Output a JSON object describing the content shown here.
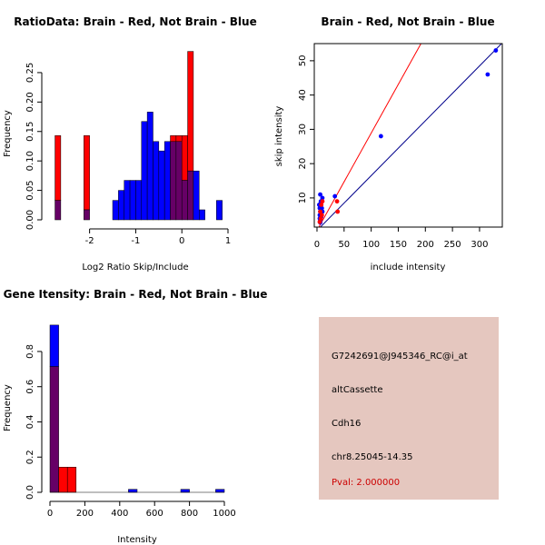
{
  "colors": {
    "red": "#ff0000",
    "blue": "#0000ff",
    "overlap": "#660066",
    "diag_blue": "#00008b",
    "box_bg": "#e5c7bf",
    "pval": "#cc0000"
  },
  "chart_data": [
    {
      "type": "bar",
      "id": "ratio_hist",
      "title": "RatioData: Brain - Red, Not Brain - Blue",
      "xlabel": "Log2 Ratio Skip/Include",
      "ylabel": "Frequency",
      "xlim": [
        -2.8,
        1.0
      ],
      "ylim": [
        0,
        0.29
      ],
      "xticks": [
        -2,
        -1,
        0,
        1
      ],
      "yticks": [
        0.0,
        0.05,
        0.1,
        0.15,
        0.2,
        0.25
      ],
      "ytick_labels": [
        "0.00",
        "0.05",
        "0.10",
        "0.15",
        "0.20",
        "0.25"
      ],
      "bin_width": 0.125,
      "series": [
        {
          "name": "Brain",
          "color": "red",
          "bins": [
            {
              "x": -2.75,
              "value": 0.143
            },
            {
              "x": -2.125,
              "value": 0.143
            },
            {
              "x": -0.25,
              "value": 0.143
            },
            {
              "x": -0.125,
              "value": 0.143
            },
            {
              "x": 0.0,
              "value": 0.143
            },
            {
              "x": 0.125,
              "value": 0.286
            }
          ]
        },
        {
          "name": "Not Brain",
          "color": "blue",
          "bins": [
            {
              "x": -2.75,
              "value": 0.033
            },
            {
              "x": -2.125,
              "value": 0.017
            },
            {
              "x": -1.5,
              "value": 0.033
            },
            {
              "x": -1.375,
              "value": 0.05
            },
            {
              "x": -1.25,
              "value": 0.067
            },
            {
              "x": -1.125,
              "value": 0.067
            },
            {
              "x": -1.0,
              "value": 0.067
            },
            {
              "x": -0.875,
              "value": 0.167
            },
            {
              "x": -0.75,
              "value": 0.183
            },
            {
              "x": -0.625,
              "value": 0.133
            },
            {
              "x": -0.5,
              "value": 0.117
            },
            {
              "x": -0.375,
              "value": 0.133
            },
            {
              "x": -0.25,
              "value": 0.133
            },
            {
              "x": -0.125,
              "value": 0.133
            },
            {
              "x": 0.0,
              "value": 0.067
            },
            {
              "x": 0.125,
              "value": 0.083
            },
            {
              "x": 0.25,
              "value": 0.083
            },
            {
              "x": 0.375,
              "value": 0.017
            },
            {
              "x": 0.75,
              "value": 0.033
            }
          ]
        }
      ]
    },
    {
      "type": "scatter",
      "id": "intensity_scatter",
      "title": "Brain - Red, Not Brain - Blue",
      "xlabel": "include intensity",
      "ylabel": "skip intensity",
      "xlim": [
        -5,
        342
      ],
      "ylim": [
        1.5,
        55
      ],
      "xticks": [
        0,
        50,
        100,
        150,
        200,
        250,
        300
      ],
      "yticks": [
        10,
        20,
        30,
        40,
        50
      ],
      "lines": [
        {
          "name": "Brain fit",
          "color": "red",
          "slope": 0.284,
          "intercept": 0.5
        },
        {
          "name": "Not Brain fit",
          "color": "diag_blue",
          "slope": 0.16,
          "intercept": 0.5
        }
      ],
      "series": [
        {
          "name": "Brain",
          "color": "red",
          "points": [
            {
              "x": 5,
              "y": 3
            },
            {
              "x": 7,
              "y": 4
            },
            {
              "x": 8,
              "y": 8
            },
            {
              "x": 10,
              "y": 9
            },
            {
              "x": 9,
              "y": 5
            },
            {
              "x": 37,
              "y": 9
            },
            {
              "x": 38,
              "y": 6
            },
            {
              "x": 6,
              "y": 6
            }
          ]
        },
        {
          "name": "Not Brain",
          "color": "blue",
          "points": [
            {
              "x": 330,
              "y": 53
            },
            {
              "x": 315,
              "y": 46
            },
            {
              "x": 118,
              "y": 28
            },
            {
              "x": 33,
              "y": 10.5
            },
            {
              "x": 6,
              "y": 11
            },
            {
              "x": 10,
              "y": 10
            },
            {
              "x": 5,
              "y": 7
            },
            {
              "x": 6,
              "y": 6
            },
            {
              "x": 7,
              "y": 5
            },
            {
              "x": 5,
              "y": 4
            },
            {
              "x": 6,
              "y": 3.5
            },
            {
              "x": 8,
              "y": 4.5
            },
            {
              "x": 4,
              "y": 8
            },
            {
              "x": 9,
              "y": 7
            },
            {
              "x": 7,
              "y": 9
            },
            {
              "x": 5,
              "y": 5
            },
            {
              "x": 6,
              "y": 2.8
            },
            {
              "x": 10,
              "y": 6
            }
          ]
        }
      ]
    },
    {
      "type": "bar",
      "id": "gene_hist",
      "title": "Gene Itensity: Brain - Red, Not Brain - Blue",
      "xlabel": "Intensity",
      "ylabel": "Frequency",
      "xlim": [
        0,
        1000
      ],
      "ylim": [
        0,
        0.97
      ],
      "xticks": [
        0,
        200,
        400,
        600,
        800,
        1000
      ],
      "yticks": [
        0.0,
        0.2,
        0.4,
        0.6,
        0.8
      ],
      "ytick_labels": [
        "0.0",
        "0.2",
        "0.4",
        "0.6",
        "0.8"
      ],
      "bin_width": 50,
      "series": [
        {
          "name": "Brain",
          "color": "red",
          "bins": [
            {
              "x": 0,
              "value": 0.714
            },
            {
              "x": 50,
              "value": 0.143
            },
            {
              "x": 100,
              "value": 0.143
            }
          ]
        },
        {
          "name": "Not Brain",
          "color": "blue",
          "bins": [
            {
              "x": 0,
              "value": 0.95
            },
            {
              "x": 450,
              "value": 0.017
            },
            {
              "x": 750,
              "value": 0.017
            },
            {
              "x": 950,
              "value": 0.017
            }
          ]
        }
      ]
    }
  ],
  "info": {
    "probe": "G7242691@J945346_RC@i_at",
    "event_type": "altCassette",
    "gene": "Cdh16",
    "location": "chr8.25045-14.35",
    "pval": "Pval: 2.000000"
  }
}
